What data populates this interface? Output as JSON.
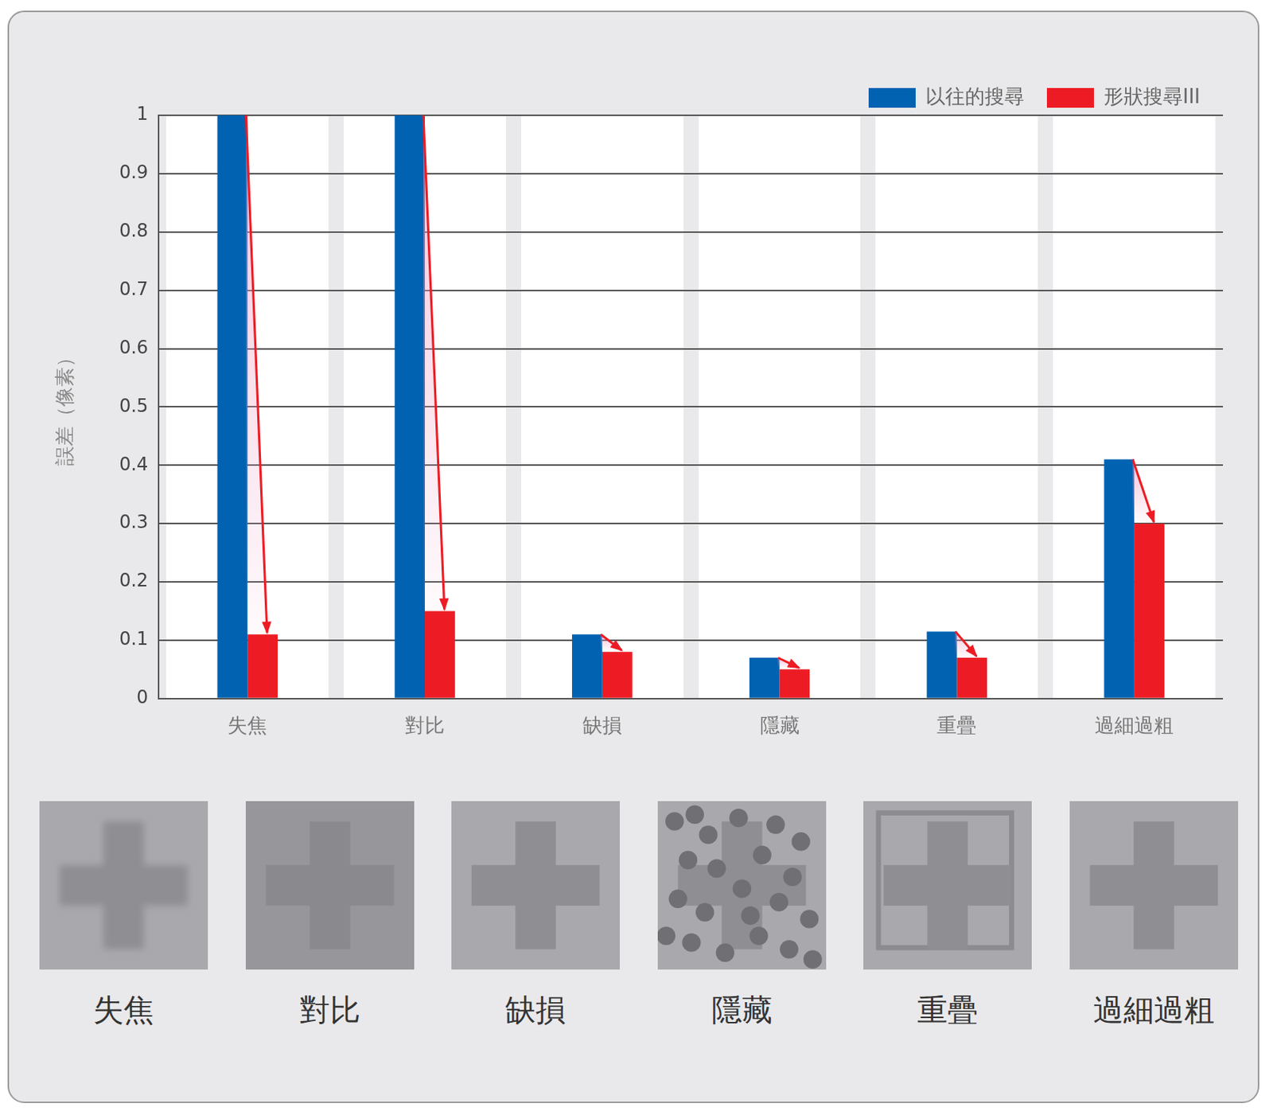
{
  "chart_data": {
    "type": "bar",
    "ylabel": "誤差（像素）",
    "categories": [
      "失焦",
      "對比",
      "缺損",
      "隱藏",
      "重疊",
      "過細過粗"
    ],
    "series": [
      {
        "name": "以往的搜尋",
        "color": "#0062b1",
        "values": [
          1,
          1,
          0.11,
          0.07,
          0.115,
          0.41
        ]
      },
      {
        "name": "形狀搜尋III",
        "color": "#ed1c24",
        "values": [
          0.11,
          0.15,
          0.08,
          0.05,
          0.07,
          0.3
        ]
      }
    ],
    "ylim": [
      0,
      1
    ],
    "yticks": [
      0,
      0.1,
      0.2,
      0.3,
      0.4,
      0.5,
      0.6,
      0.7,
      0.8,
      0.9,
      1
    ],
    "grid": true,
    "legend": "top-right"
  }
}
